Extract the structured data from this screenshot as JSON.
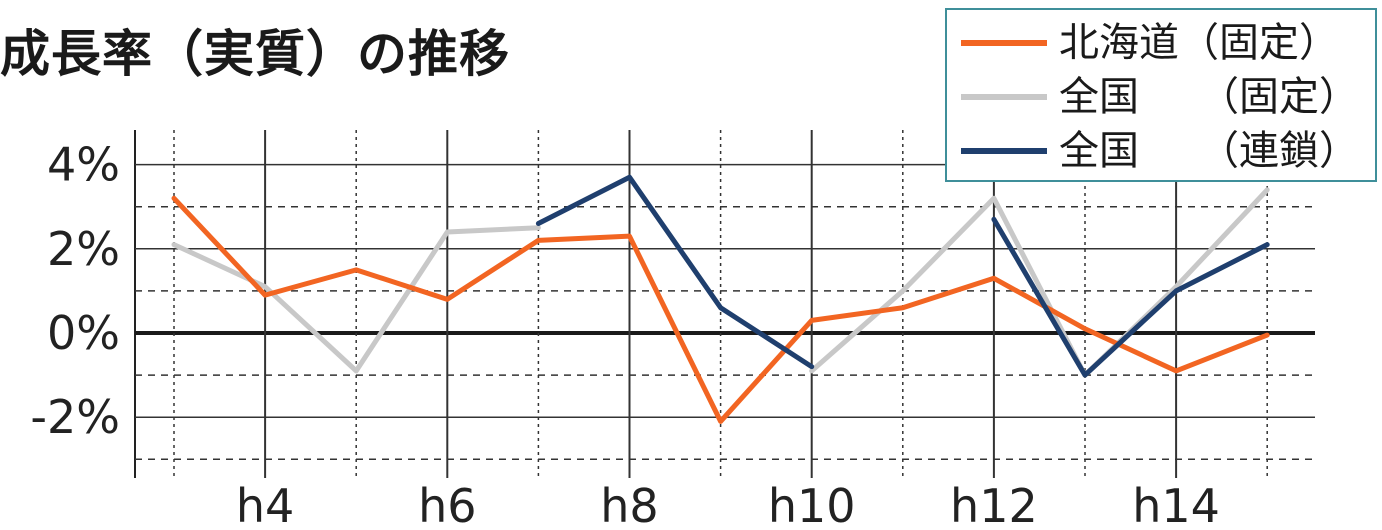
{
  "chart_data": {
    "type": "line",
    "title": "成長率（実質）の推移",
    "xlabel": "",
    "ylabel": "",
    "x": [
      "h3",
      "h4",
      "h5",
      "h6",
      "h7",
      "h8",
      "h9",
      "h10",
      "h11",
      "h12",
      "h13",
      "h14",
      "h15"
    ],
    "x_tick_labels": [
      "h4",
      "h6",
      "h8",
      "h10",
      "h12",
      "h14"
    ],
    "y_tick_labels": [
      "4%",
      "2%",
      "0%",
      "-2%"
    ],
    "ylim": [
      -3.3,
      4.5
    ],
    "grid": true,
    "legend_position": "top-right",
    "series": [
      {
        "name": "北海道（固定）",
        "color": "#f26522",
        "values": [
          3.2,
          0.9,
          1.5,
          0.8,
          2.2,
          2.3,
          -2.1,
          0.3,
          0.6,
          1.3,
          0.1,
          -0.9,
          -0.05
        ]
      },
      {
        "name": "全国　　（固定）",
        "color": "#c8c8c8",
        "values": [
          2.1,
          1.1,
          -0.9,
          2.4,
          2.5,
          null,
          null,
          -0.9,
          1.0,
          3.2,
          -1.0,
          1.1,
          3.4
        ]
      },
      {
        "name": "全国　　（連鎖）",
        "color": "#1f3f6e",
        "values": [
          null,
          null,
          null,
          null,
          2.6,
          3.7,
          0.6,
          -0.8,
          null,
          2.7,
          -1.0,
          1.0,
          2.1
        ]
      }
    ]
  }
}
